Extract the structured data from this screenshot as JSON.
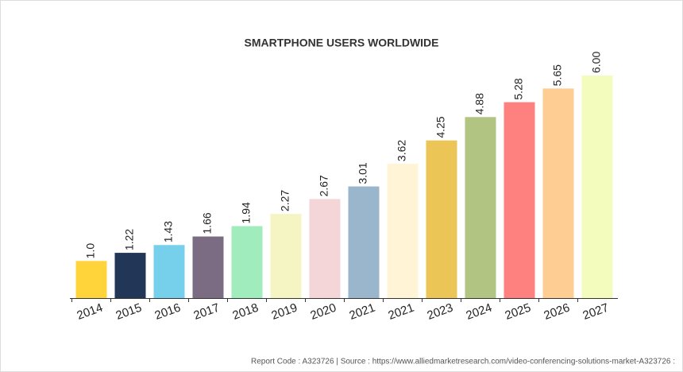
{
  "chart_data": {
    "type": "bar",
    "title": "SMARTPHONE USERS WORLDWIDE",
    "categories": [
      "2014",
      "2015",
      "2016",
      "2017",
      "2018",
      "2019",
      "2020",
      "2021",
      "2021",
      "2023",
      "2024",
      "2025",
      "2026",
      "2027"
    ],
    "values": [
      1.0,
      1.22,
      1.43,
      1.66,
      1.94,
      2.27,
      2.67,
      3.01,
      3.62,
      4.25,
      4.88,
      5.28,
      5.65,
      6.0
    ],
    "value_labels": [
      "1.0",
      "1.22",
      "1.43",
      "1.66",
      "1.94",
      "2.27",
      "2.67",
      "3.01",
      "3.62",
      "4.25",
      "4.88",
      "5.28",
      "5.65",
      "6.00"
    ],
    "colors": [
      "#ffd43b",
      "#223658",
      "#76d0eb",
      "#7b6c84",
      "#a0ecbc",
      "#f5f5c4",
      "#f5d6d8",
      "#9ab6cd",
      "#fff5d6",
      "#ebc556",
      "#b1c481",
      "#fe8180",
      "#fecd94",
      "#f3fbbd"
    ],
    "footer": "Report Code : A323726  |  Source : https://www.alliedmarketresearch.com/video-conferencing-solutions-market-A323726 :"
  }
}
